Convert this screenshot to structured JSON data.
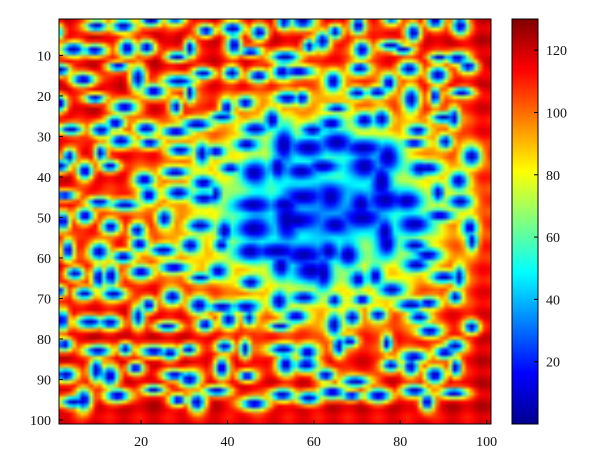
{
  "chart_data": [
    {
      "type": "heatmap",
      "title": "",
      "xlabel": "",
      "ylabel": "",
      "xlim": [
        1,
        101
      ],
      "ylim": [
        1,
        101
      ],
      "y_reversed": true,
      "xticks": [
        20,
        40,
        60,
        80,
        100
      ],
      "xtick_labels": [
        "20",
        "40",
        "60",
        "80",
        "100"
      ],
      "yticks": [
        10,
        20,
        30,
        40,
        50,
        60,
        70,
        80,
        90,
        100
      ],
      "ytick_labels": [
        "10",
        "20",
        "30",
        "40",
        "50",
        "60",
        "70",
        "80",
        "90",
        "100"
      ],
      "colormap": "jet",
      "value_range": [
        0,
        130
      ],
      "grid": false,
      "description_of_values": "spotted pattern: low-valued (~5) spots on a background; background high (~100-125) in left, top-left and bottom regions, moderate (~40-60) in the central and upper-right region"
    },
    {
      "type": "colorbar",
      "range": [
        0,
        130
      ],
      "ticks": [
        20,
        40,
        60,
        80,
        100,
        120
      ],
      "tick_labels": [
        "20",
        "40",
        "60",
        "80",
        "100",
        "120"
      ]
    }
  ],
  "colors": {
    "jet_stops": [
      "#00008f",
      "#0000ff",
      "#0080ff",
      "#00ffff",
      "#80ff80",
      "#ffff00",
      "#ff8000",
      "#ff0000",
      "#800000"
    ]
  }
}
